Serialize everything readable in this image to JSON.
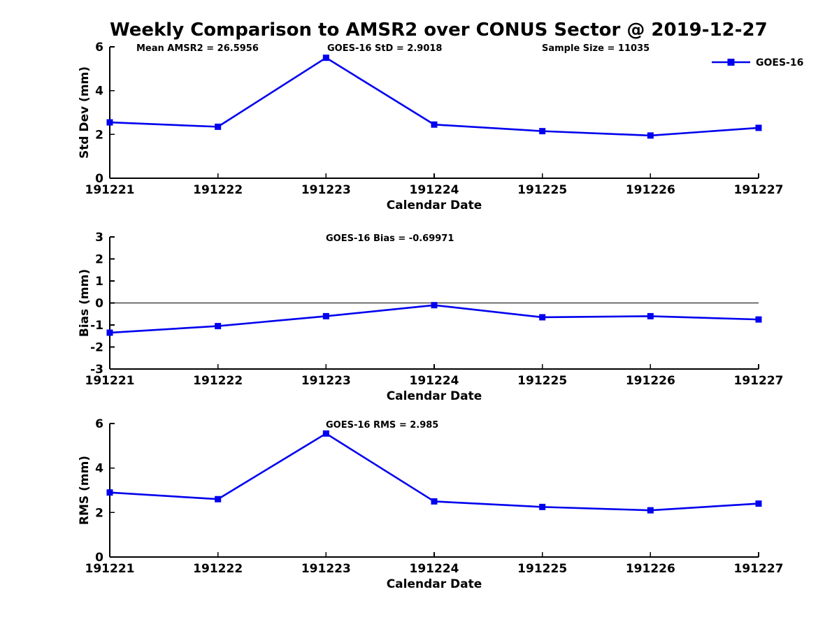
{
  "title": "Weekly Comparison to AMSR2 over CONUS Sector @ 2019-12-27",
  "legend": {
    "label": "GOES-16",
    "position": "upper-right"
  },
  "colors": {
    "line": "#0000EE",
    "axis": "#000000",
    "text": "#000000",
    "background": "#FFFFFF"
  },
  "chart_data": [
    {
      "type": "line",
      "ylabel": "Std Dev (mm)",
      "xlabel": "Calendar Date",
      "ylim": [
        0,
        6
      ],
      "yticks": [
        0,
        2,
        4,
        6
      ],
      "categories": [
        "191221",
        "191222",
        "191223",
        "191224",
        "191225",
        "191226",
        "191227"
      ],
      "series": [
        {
          "name": "GOES-16",
          "values": [
            2.55,
            2.35,
            5.5,
            2.45,
            2.15,
            1.95,
            2.3
          ]
        }
      ],
      "annotations": [
        "Mean AMSR2 = 26.5956",
        "GOES-16 StD = 2.9018",
        "Sample Size = 11035"
      ],
      "zero_line": false,
      "grid": false,
      "show_legend": true
    },
    {
      "type": "line",
      "ylabel": "Bias (mm)",
      "xlabel": "Calendar Date",
      "ylim": [
        -3,
        3
      ],
      "yticks": [
        -3,
        -2,
        -1,
        0,
        1,
        2,
        3
      ],
      "categories": [
        "191221",
        "191222",
        "191223",
        "191224",
        "191225",
        "191226",
        "191227"
      ],
      "series": [
        {
          "name": "GOES-16",
          "values": [
            -1.35,
            -1.05,
            -0.6,
            -0.1,
            -0.65,
            -0.6,
            -0.75
          ]
        }
      ],
      "annotations": [
        "GOES-16 Bias  = -0.69971"
      ],
      "zero_line": true,
      "grid": false,
      "show_legend": false
    },
    {
      "type": "line",
      "ylabel": "RMS (mm)",
      "xlabel": "Calendar Date",
      "ylim": [
        0,
        6
      ],
      "yticks": [
        0,
        2,
        4,
        6
      ],
      "categories": [
        "191221",
        "191222",
        "191223",
        "191224",
        "191225",
        "191226",
        "191227"
      ],
      "series": [
        {
          "name": "GOES-16",
          "values": [
            2.9,
            2.6,
            5.55,
            2.5,
            2.25,
            2.1,
            2.4
          ]
        }
      ],
      "annotations": [
        "GOES-16 RMS = 2.985"
      ],
      "zero_line": false,
      "grid": false,
      "show_legend": false
    }
  ]
}
